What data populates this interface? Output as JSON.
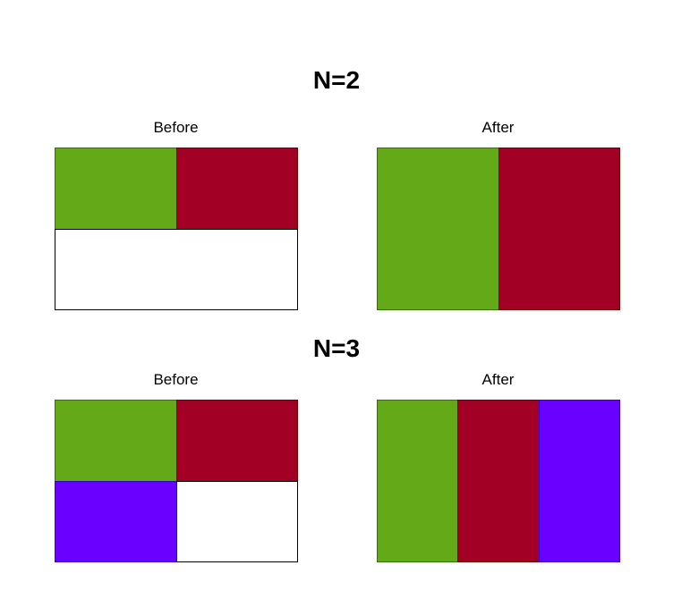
{
  "sections": [
    {
      "title": "N=2",
      "before": {
        "label": "Before",
        "rows": 2,
        "cols": 2,
        "cells": [
          "#63a918",
          "#a20025",
          null,
          null
        ]
      },
      "after": {
        "label": "After",
        "rows": 1,
        "cols": 2,
        "cells": [
          "#63a918",
          "#a20025"
        ]
      }
    },
    {
      "title": "N=3",
      "before": {
        "label": "Before",
        "rows": 2,
        "cols": 2,
        "cells": [
          "#63a918",
          "#a20025",
          "#6a00ff",
          null
        ]
      },
      "after": {
        "label": "After",
        "rows": 1,
        "cols": 3,
        "cells": [
          "#63a918",
          "#a20025",
          "#6a00ff"
        ]
      }
    }
  ],
  "colors": {
    "green": "#63a918",
    "green_border": "#2d7600",
    "red": "#a20025",
    "red_border": "#6f0000",
    "purple": "#6a00ff",
    "purple_border": "#3700cc",
    "empty_border": "#000000"
  }
}
